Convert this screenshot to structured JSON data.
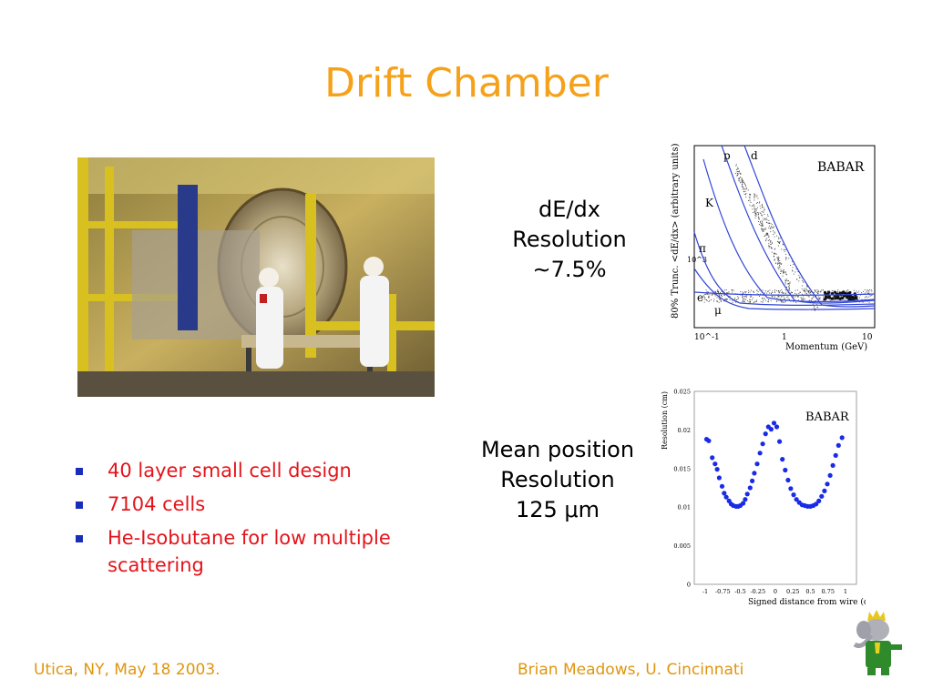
{
  "slide": {
    "title": "Drift Chamber",
    "bullets": [
      "40 layer small cell design",
      "7104 cells",
      "He-Isobutane for low multiple scattering"
    ],
    "caption_dedx": [
      "dE/dx",
      "Resolution",
      "∼7.5%"
    ],
    "caption_mean": [
      "Mean position",
      "Resolution",
      "125 μm"
    ],
    "footer_left": "Utica, NY, May 18 2003.",
    "footer_right": "Brian Meadows, U. Cincinnati",
    "logo_text": "BABAR"
  },
  "colors": {
    "title": "#f5a11a",
    "bullet_text": "#e4141b",
    "bullet_marker": "#1a2db8",
    "footer": "#e0950f",
    "curve": "#3246d8",
    "points": "#1a2be8"
  },
  "chart_data": [
    {
      "type": "scatter",
      "ylabel": "80% Trunc. <dE/dx> (arbitrary units)",
      "xlabel": "Momentum (GeV)",
      "x_scale": "log",
      "x_tick_labels": [
        "10^-1",
        "1",
        "10"
      ],
      "y_tick_labels": [
        "10^3"
      ],
      "series_labels": [
        "p",
        "d",
        "K",
        "π",
        "e",
        "μ"
      ],
      "logo": "BABAR"
    },
    {
      "type": "scatter",
      "ylabel": "Resolution (cm)",
      "xlabel": "Signed distance from wire (cm)",
      "x_ticks": [
        "-1",
        "-0.75",
        "-0.5",
        "-0.25",
        "0",
        "0.25",
        "0.5",
        "0.75",
        "1"
      ],
      "y_ticks": [
        "0",
        "0.005",
        "0.01",
        "0.015",
        "0.02",
        "0.025"
      ],
      "xlim": [
        -1,
        1
      ],
      "ylim": [
        0,
        0.025
      ],
      "logo": "BABAR",
      "x": [
        -0.98,
        -0.95,
        -0.9,
        -0.86,
        -0.83,
        -0.8,
        -0.76,
        -0.73,
        -0.7,
        -0.66,
        -0.63,
        -0.6,
        -0.56,
        -0.53,
        -0.5,
        -0.46,
        -0.43,
        -0.4,
        -0.36,
        -0.33,
        -0.3,
        -0.26,
        -0.22,
        -0.18,
        -0.14,
        -0.1,
        -0.06,
        -0.02,
        0.02,
        0.06,
        0.1,
        0.14,
        0.18,
        0.22,
        0.26,
        0.3,
        0.34,
        0.38,
        0.42,
        0.46,
        0.5,
        0.54,
        0.58,
        0.62,
        0.66,
        0.7,
        0.74,
        0.78,
        0.82,
        0.86,
        0.9,
        0.95
      ],
      "y": [
        0.0188,
        0.0186,
        0.0164,
        0.0156,
        0.0149,
        0.0138,
        0.0127,
        0.0118,
        0.0113,
        0.0108,
        0.0104,
        0.0102,
        0.0101,
        0.0101,
        0.0102,
        0.0105,
        0.011,
        0.0117,
        0.0125,
        0.0134,
        0.0144,
        0.0156,
        0.017,
        0.0182,
        0.0195,
        0.0204,
        0.0201,
        0.0209,
        0.0204,
        0.0185,
        0.0162,
        0.0148,
        0.0135,
        0.0124,
        0.0116,
        0.011,
        0.0106,
        0.0103,
        0.0102,
        0.0101,
        0.0101,
        0.0102,
        0.0104,
        0.0108,
        0.0114,
        0.0121,
        0.013,
        0.0141,
        0.0154,
        0.0167,
        0.018,
        0.019
      ]
    }
  ]
}
